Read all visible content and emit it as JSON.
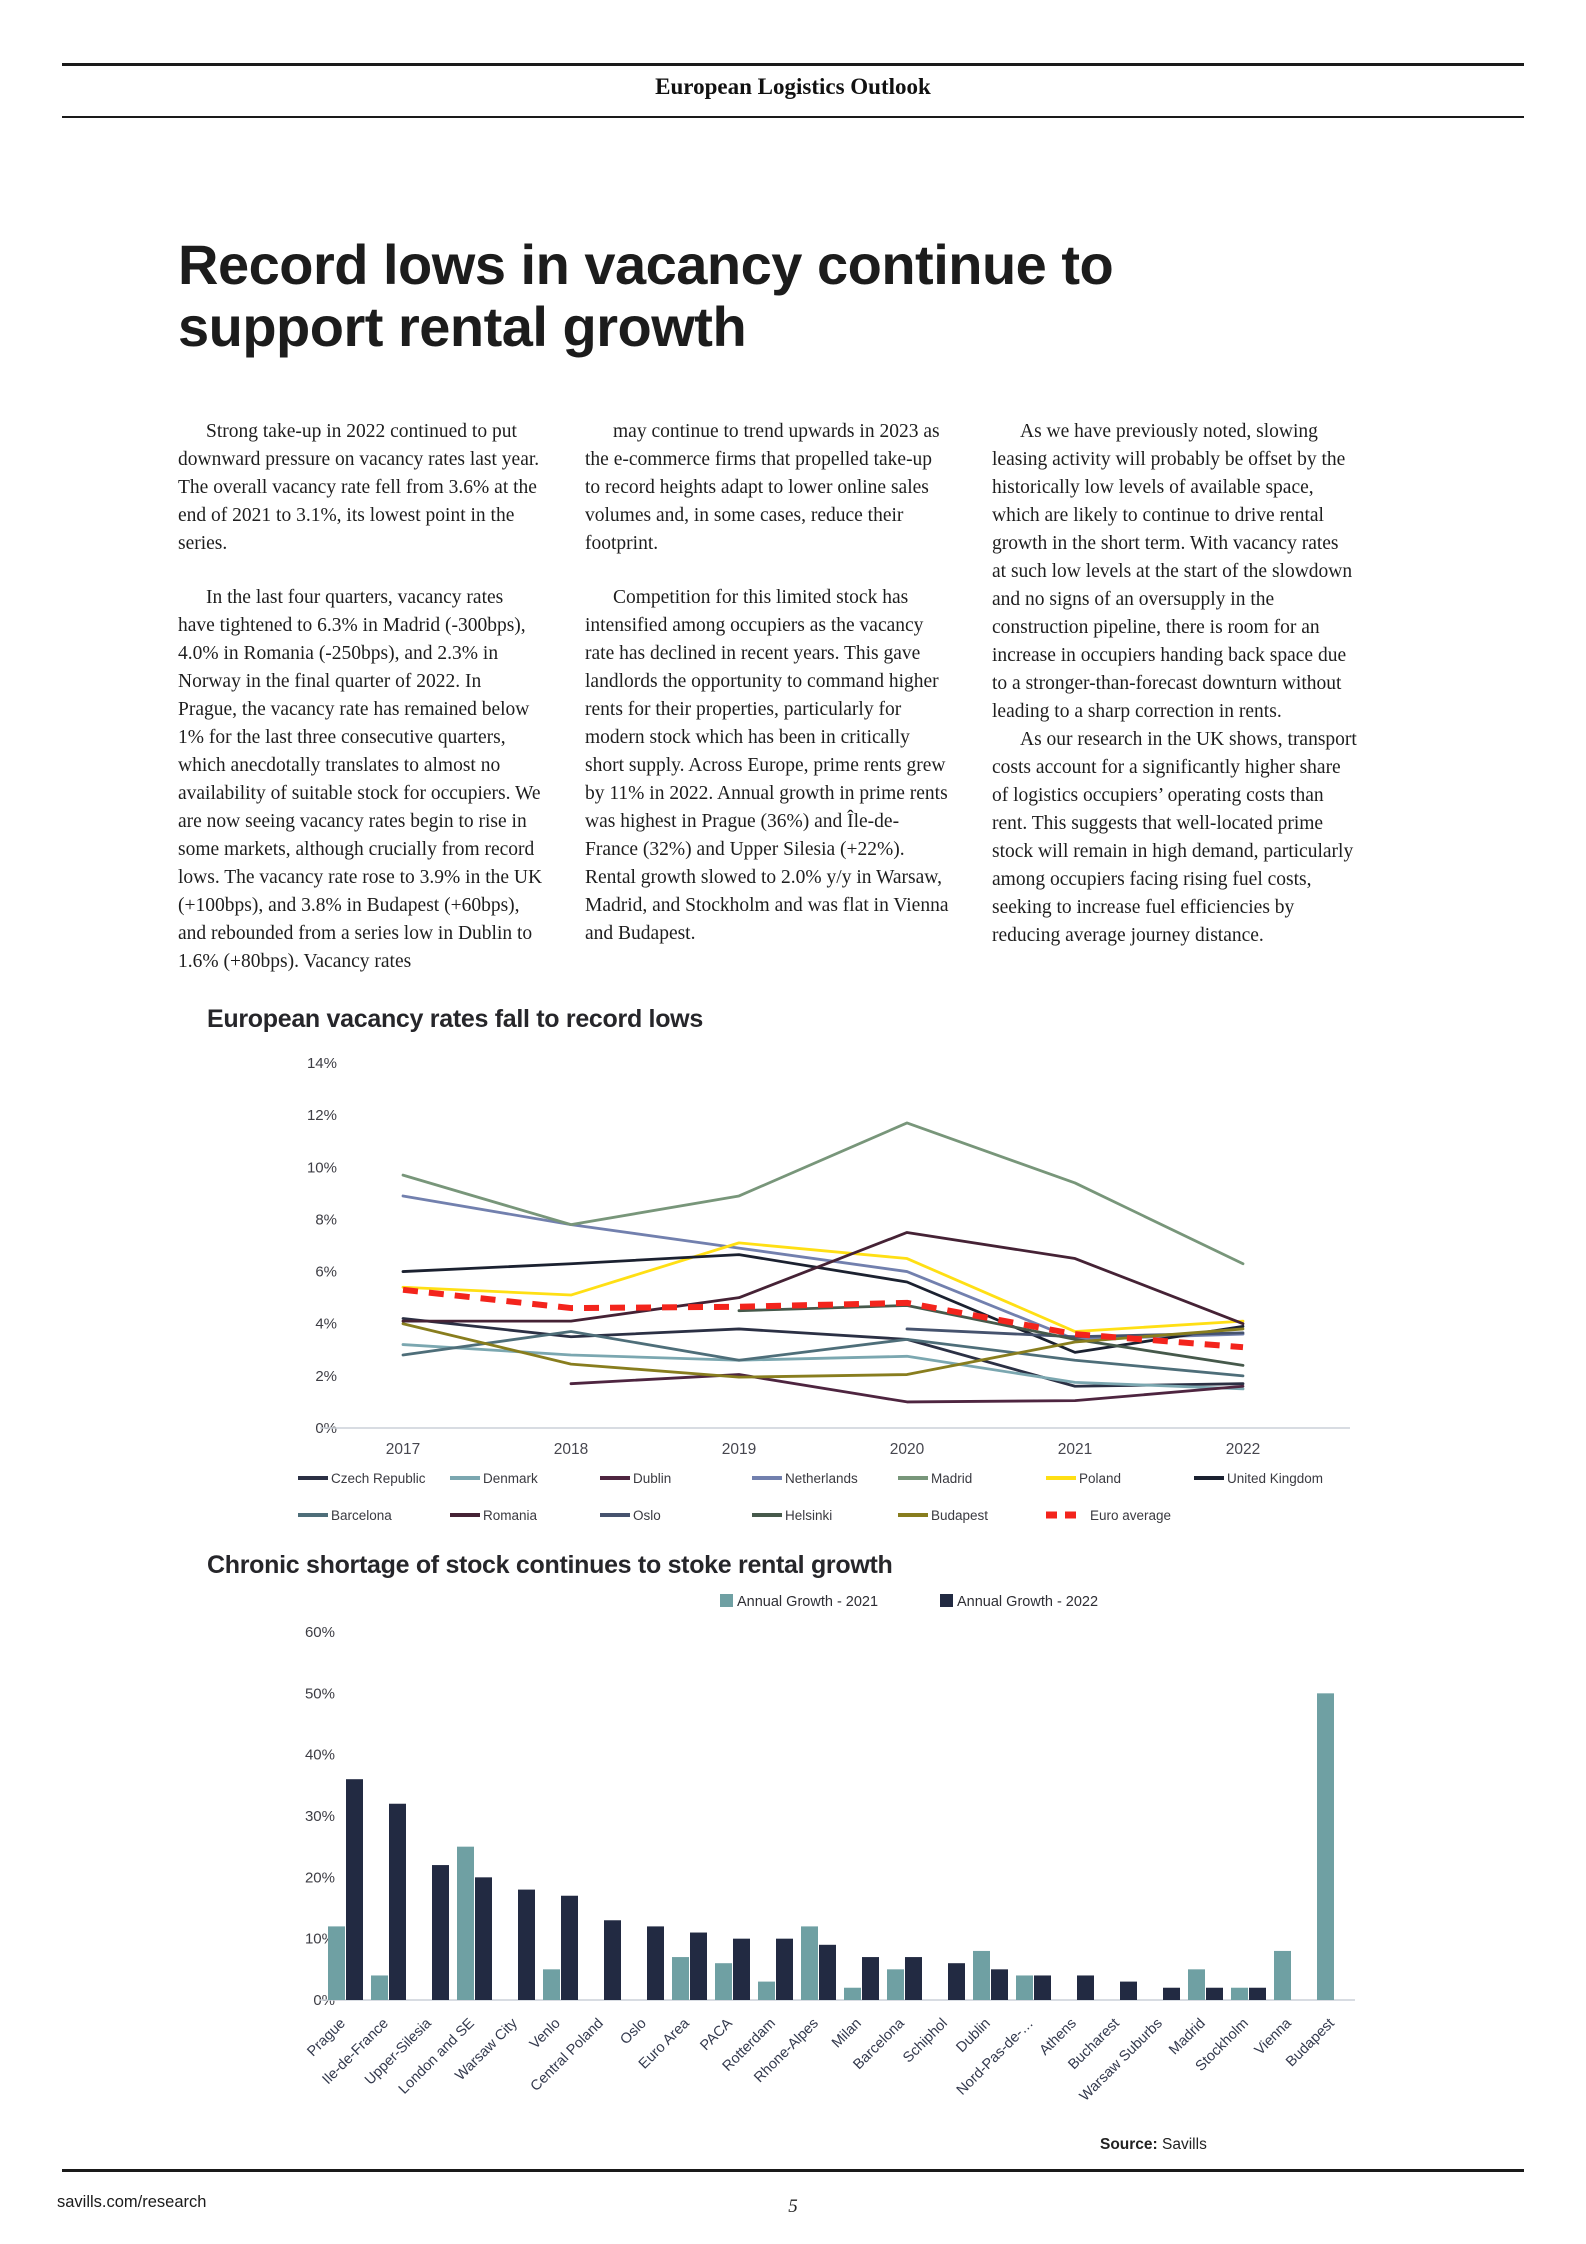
{
  "header": {
    "publication": "European Logistics Outlook"
  },
  "article": {
    "title": "Record lows in vacancy continue to support rental growth",
    "col1": {
      "p1": "Strong take-up in 2022 continued to put downward pressure on vacancy rates last year. The overall vacancy rate fell from 3.6% at the end of 2021 to 3.1%, its lowest point in the series.",
      "p2": "In the last four quarters, vacancy rates have tightened to 6.3% in Madrid (-300bps), 4.0% in Romania (-250bps), and 2.3% in Norway in the final quarter of 2022. In Prague, the vacancy rate has remained below 1% for the last three consecutive quarters, which anecdotally translates to almost no availability of suitable stock for occupiers. We are now seeing vacancy rates begin to rise in some markets, although crucially from record lows. The vacancy rate rose to 3.9% in the UK (+100bps), and 3.8% in Budapest (+60bps), and rebounded from a series low in Dublin to 1.6% (+80bps). Vacancy rates"
    },
    "col2": {
      "p1": "may continue to trend upwards in 2023 as the e-commerce firms that propelled take-up to record heights adapt to lower online sales volumes and, in some cases, reduce their footprint.",
      "p2": "Competition for this limited stock has intensified among occupiers as the vacancy rate has declined in recent years. This gave landlords the opportunity to command higher rents for their properties, particularly for modern stock which has been in critically short supply. Across Europe, prime rents grew by 11% in 2022. Annual growth in prime rents was highest in Prague (36%) and Île-de-France (32%) and Upper Silesia (+22%). Rental growth slowed to 2.0% y/y in Warsaw, Madrid, and Stockholm and was flat in Vienna and Budapest."
    },
    "col3": {
      "p1": "As we have previously noted, slowing leasing activity will probably be offset by the historically low levels of available space, which are likely to continue to drive rental growth in the short term. With vacancy rates at such low levels at the start of the slowdown and no signs of an oversupply in the construction pipeline, there is room for an increase in occupiers handing back space due to a stronger-than-forecast downturn without leading to a sharp correction in rents.",
      "p2": "As our research in the UK shows, transport costs account for a significantly higher share of logistics occupiers’ operating costs than rent. This suggests that well-located prime stock will remain in high demand, particularly among occupiers facing rising fuel costs, seeking to increase fuel efficiencies by reducing average journey distance."
    }
  },
  "chart_data": [
    {
      "type": "line",
      "title": "European vacancy rates fall to record lows",
      "x": [
        "2017",
        "2018",
        "2019",
        "2020",
        "2021",
        "2022"
      ],
      "unit": "%",
      "ylim": [
        0,
        14
      ],
      "yticks": [
        0,
        2,
        4,
        6,
        8,
        10,
        12,
        14
      ],
      "grid": false,
      "legend_position": "bottom",
      "series": [
        {
          "name": "Czech Republic",
          "color": "#2b3044",
          "values": [
            4.2,
            3.5,
            3.8,
            3.4,
            1.6,
            1.7
          ]
        },
        {
          "name": "Denmark",
          "color": "#7ba7b0",
          "values": [
            3.2,
            2.8,
            2.6,
            2.75,
            1.75,
            1.5
          ]
        },
        {
          "name": "Dublin",
          "color": "#4e2540",
          "values": [
            null,
            1.7,
            2.05,
            1.0,
            1.05,
            1.6
          ]
        },
        {
          "name": "Netherlands",
          "color": "#7280ae",
          "values": [
            8.9,
            7.8,
            6.9,
            6.0,
            3.4,
            3.6
          ]
        },
        {
          "name": "Madrid",
          "color": "#78967a",
          "values": [
            9.7,
            7.8,
            8.9,
            11.7,
            9.4,
            6.3
          ]
        },
        {
          "name": "Poland",
          "color": "#ffdf14",
          "values": [
            5.4,
            5.1,
            7.1,
            6.5,
            3.7,
            4.1
          ]
        },
        {
          "name": "United Kingdom",
          "color": "#1b2130",
          "values": [
            6.0,
            6.3,
            6.65,
            5.6,
            2.9,
            3.9
          ]
        },
        {
          "name": "Barcelona",
          "color": "#4e6e79",
          "values": [
            2.8,
            3.7,
            2.6,
            3.4,
            2.6,
            2.0
          ]
        },
        {
          "name": "Romania",
          "color": "#452235",
          "values": [
            4.1,
            4.1,
            5.0,
            7.5,
            6.5,
            4.0
          ]
        },
        {
          "name": "Oslo",
          "color": "#46536e",
          "values": [
            null,
            null,
            null,
            3.8,
            3.5,
            3.65
          ]
        },
        {
          "name": "Helsinki",
          "color": "#46594b",
          "values": [
            null,
            null,
            4.5,
            4.7,
            3.4,
            2.4
          ]
        },
        {
          "name": "Budapest",
          "color": "#887d1e",
          "values": [
            4.0,
            2.45,
            1.95,
            2.05,
            3.3,
            3.8
          ]
        },
        {
          "name": "Euro average",
          "color": "#f3241c",
          "dashed": true,
          "values": [
            5.3,
            4.6,
            4.65,
            4.8,
            3.6,
            3.1
          ]
        }
      ]
    },
    {
      "type": "bar",
      "title": "Chronic shortage of stock continues to stoke rental growth",
      "unit": "%",
      "ylim": [
        0,
        60
      ],
      "yticks": [
        0,
        10,
        20,
        30,
        40,
        50,
        60
      ],
      "grid": false,
      "legend_position": "top",
      "categories": [
        "Prague",
        "Ile-de-France",
        "Upper-Silesia",
        "London and SE",
        "Warsaw City",
        "Venlo",
        "Central Poland",
        "Oslo",
        "Euro Area",
        "PACA",
        "Rotterdam",
        "Rhone-Alpes",
        "Milan",
        "Barcelona",
        "Schiphol",
        "Dublin",
        "Nord-Pas-de-…",
        "Athens",
        "Bucharest",
        "Warsaw Suburbs",
        "Madrid",
        "Stockholm",
        "Vienna",
        "Budapest"
      ],
      "series": [
        {
          "name": "Annual Growth - 2021",
          "color": "#6fa0a3",
          "values": [
            12,
            4,
            0,
            25,
            0,
            5,
            0,
            0,
            7,
            6,
            3,
            12,
            2,
            5,
            0,
            8,
            4,
            0,
            0,
            0,
            5,
            2,
            8,
            50
          ]
        },
        {
          "name": "Annual Growth - 2022",
          "color": "#222a42",
          "values": [
            36,
            32,
            22,
            20,
            18,
            17,
            13,
            12,
            11,
            10,
            10,
            9,
            7,
            7,
            6,
            5,
            4,
            4,
            3,
            2,
            2,
            2,
            0,
            0
          ]
        }
      ]
    }
  ],
  "footer": {
    "source_label": "Source:",
    "source_value": " Savills",
    "website": "savills.com/research",
    "page_number": "5"
  }
}
